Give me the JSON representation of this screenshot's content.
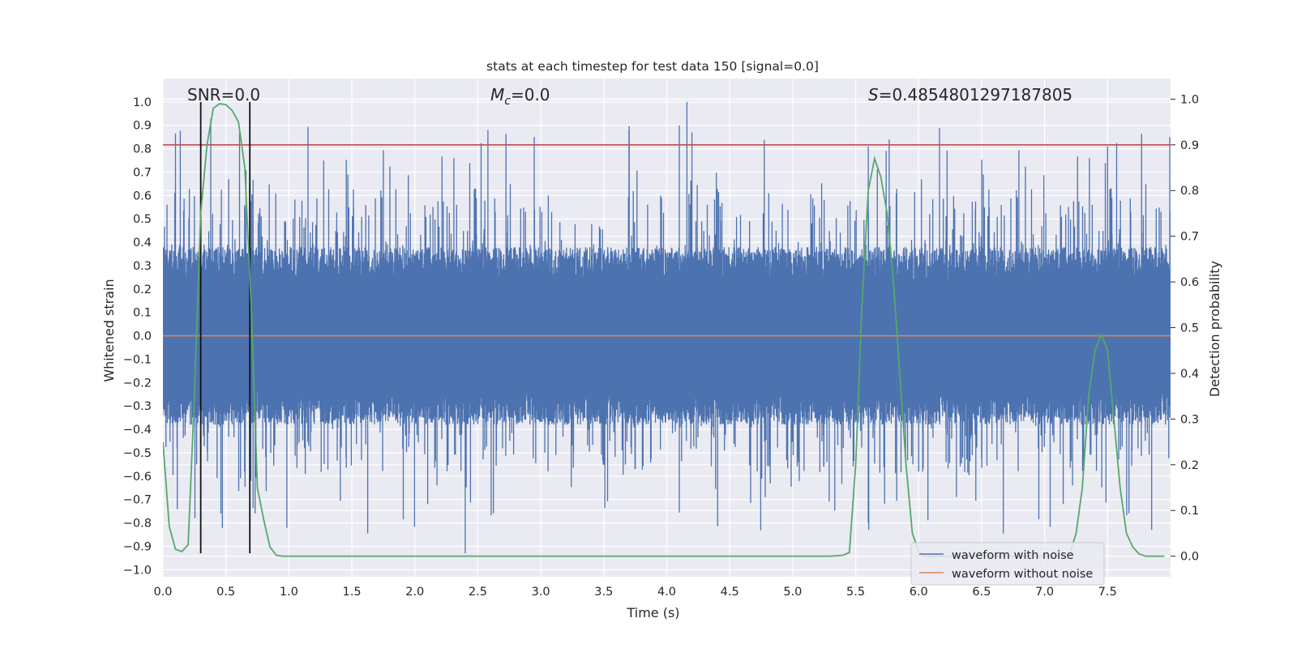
{
  "chart_data": {
    "type": "line",
    "title": "stats at each timestep for test data 150 [signal=0.0]",
    "xlabel": "Time (s)",
    "ylabel": "Whitened strain",
    "y2label": "Detection probability",
    "xlim": [
      0.0,
      8.0
    ],
    "ylim": [
      -1.03,
      1.1
    ],
    "y2lim": [
      -0.045,
      1.045
    ],
    "xticks": [
      "0.0",
      "0.5",
      "1.0",
      "1.5",
      "2.0",
      "2.5",
      "3.0",
      "3.5",
      "4.0",
      "4.5",
      "5.0",
      "5.5",
      "6.0",
      "6.5",
      "7.0",
      "7.5"
    ],
    "xtick_values": [
      0,
      0.5,
      1,
      1.5,
      2,
      2.5,
      3,
      3.5,
      4,
      4.5,
      5,
      5.5,
      6,
      6.5,
      7,
      7.5
    ],
    "yticks": [
      "1.0",
      "0.9",
      "0.8",
      "0.7",
      "0.6",
      "0.5",
      "0.4",
      "0.3",
      "0.2",
      "0.1",
      "0.0",
      "−0.1",
      "−0.2",
      "−0.3",
      "−0.4",
      "−0.5",
      "−0.6",
      "−0.7",
      "−0.8",
      "−0.9",
      "−1.0"
    ],
    "ytick_values": [
      1.0,
      0.9,
      0.8,
      0.7,
      0.6,
      0.5,
      0.4,
      0.3,
      0.2,
      0.1,
      0.0,
      -0.1,
      -0.2,
      -0.3,
      -0.4,
      -0.5,
      -0.6,
      -0.7,
      -0.8,
      -0.9,
      -1.0
    ],
    "y2ticks": [
      "1.0",
      "0.9",
      "0.8",
      "0.7",
      "0.6",
      "0.5",
      "0.4",
      "0.3",
      "0.2",
      "0.1",
      "0.0"
    ],
    "y2tick_values": [
      1.0,
      0.9,
      0.8,
      0.7,
      0.6,
      0.5,
      0.4,
      0.3,
      0.2,
      0.1,
      0.0
    ],
    "annotations": {
      "snr_prefix": "SNR=",
      "snr_value": "0.0",
      "mc_symbol": "M",
      "mc_sub": "c",
      "mc_value": "=0.0",
      "s_symbol": "S",
      "s_value": "=0.4854801297187805"
    },
    "series": [
      {
        "name": "waveform with noise",
        "color": "#4c72b0",
        "kind": "noise",
        "amplitude_core": 0.25,
        "spike_max": 1.0,
        "spike_min": -0.93
      },
      {
        "name": "waveform without noise",
        "color": "#dd8452",
        "value": 0.0
      },
      {
        "name": "detection probability",
        "color": "#55a868",
        "axis": "right",
        "x": [
          0.0,
          0.05,
          0.1,
          0.15,
          0.2,
          0.25,
          0.3,
          0.35,
          0.4,
          0.45,
          0.5,
          0.55,
          0.6,
          0.65,
          0.7,
          0.75,
          0.8,
          0.85,
          0.9,
          0.95,
          1.0,
          1.5,
          2.0,
          2.5,
          3.0,
          3.5,
          4.0,
          4.5,
          5.0,
          5.3,
          5.4,
          5.45,
          5.5,
          5.55,
          5.6,
          5.65,
          5.7,
          5.75,
          5.8,
          5.85,
          5.9,
          5.95,
          6.0,
          6.05,
          6.1,
          6.5,
          7.0,
          7.1,
          7.2,
          7.25,
          7.3,
          7.35,
          7.4,
          7.45,
          7.5,
          7.55,
          7.6,
          7.65,
          7.7,
          7.75,
          7.8,
          7.85,
          7.95
        ],
        "values": [
          0.25,
          0.065,
          0.015,
          0.01,
          0.025,
          0.35,
          0.75,
          0.9,
          0.98,
          0.99,
          0.988,
          0.975,
          0.95,
          0.85,
          0.55,
          0.15,
          0.08,
          0.02,
          0.002,
          0.0,
          0.0,
          0.0,
          0.0,
          0.0,
          0.0,
          0.0,
          0.0,
          0.0,
          0.0,
          0.0,
          0.002,
          0.008,
          0.2,
          0.55,
          0.8,
          0.87,
          0.83,
          0.75,
          0.6,
          0.4,
          0.2,
          0.05,
          0.01,
          0.0,
          0.0,
          0.0,
          0.0,
          0.0,
          0.005,
          0.05,
          0.15,
          0.35,
          0.45,
          0.485,
          0.45,
          0.3,
          0.15,
          0.05,
          0.02,
          0.005,
          0.0,
          0.0,
          0.0
        ]
      },
      {
        "name": "threshold",
        "color": "#c44e52",
        "axis": "right",
        "value": 0.9
      }
    ],
    "vlines": [
      0.3,
      0.69
    ],
    "vline_range": [
      -0.93,
      1.0
    ],
    "legend": {
      "placement": "lower-right",
      "entries": [
        "waveform with noise",
        "waveform without noise"
      ]
    }
  }
}
